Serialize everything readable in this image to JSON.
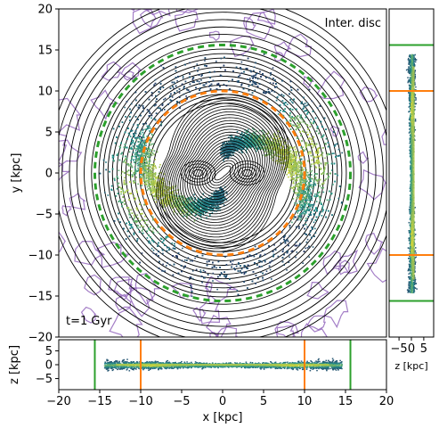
{
  "chart_data": [
    {
      "panel": "main-face-on",
      "type": "heatmap",
      "label": "Inter. disc",
      "annotation": "t=1 Gyr",
      "xlabel": "",
      "ylabel": "y [kpc]",
      "xlim": [
        -20,
        20
      ],
      "ylim": [
        -20,
        20
      ],
      "yticks": [
        20,
        15,
        10,
        5,
        0,
        -5,
        -10,
        -15,
        -20
      ],
      "yticklabels": [
        "20",
        "15",
        "10",
        "5",
        "0",
        "−5",
        "−10",
        "−15",
        "−20"
      ],
      "circles": [
        {
          "name": "inner",
          "radius": 10,
          "color": "#ff7f0e",
          "style": "dashed"
        },
        {
          "name": "outer",
          "radius": 15.6,
          "color": "#2ca02c",
          "style": "dashed"
        }
      ],
      "colors": {
        "contour_lines": "#000000",
        "noise_contours": "#9467bd",
        "density_low": "#2b0f54",
        "density_mid": "#21918c",
        "density_high": "#fde725"
      }
    },
    {
      "panel": "bottom-edge-on",
      "type": "heatmap",
      "xlabel": "x [kpc]",
      "ylabel": "z [kpc]",
      "xlim": [
        -20,
        20
      ],
      "ylim": [
        -9,
        9
      ],
      "xticks": [
        -20,
        -15,
        -10,
        -5,
        0,
        5,
        10,
        15,
        20
      ],
      "xticklabels": [
        "−20",
        "−15",
        "−10",
        "−5",
        "0",
        "5",
        "10",
        "15",
        "20"
      ],
      "yticks": [
        5,
        0,
        -5
      ],
      "yticklabels": [
        "5",
        "0",
        "−5"
      ],
      "vlines": [
        {
          "x": -15.6,
          "color": "#2ca02c"
        },
        {
          "x": -10,
          "color": "#ff7f0e"
        },
        {
          "x": 10,
          "color": "#ff7f0e"
        },
        {
          "x": 15.6,
          "color": "#2ca02c"
        }
      ]
    },
    {
      "panel": "right-edge-on",
      "type": "heatmap",
      "xlabel": "z [kpc]",
      "ylabel": "",
      "xlim": [
        -9,
        9
      ],
      "ylim": [
        -20,
        20
      ],
      "xticks": [
        -5,
        0,
        5
      ],
      "xticklabels": [
        "−5",
        "0",
        "5"
      ],
      "hlines": [
        {
          "y": 15.6,
          "color": "#2ca02c"
        },
        {
          "y": 10,
          "color": "#ff7f0e"
        },
        {
          "y": -10,
          "color": "#ff7f0e"
        },
        {
          "y": -15.6,
          "color": "#2ca02c"
        }
      ]
    }
  ]
}
